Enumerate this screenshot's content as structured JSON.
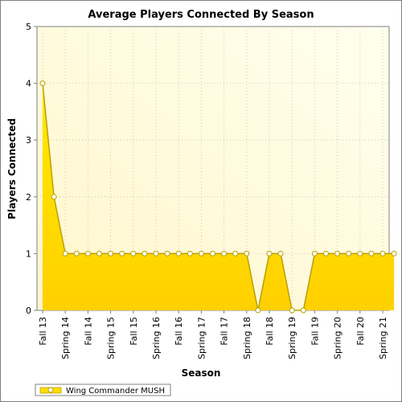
{
  "chart_data": {
    "type": "area",
    "title": "Average Players Connected By Season",
    "xlabel": "Season",
    "ylabel": "Players Connected",
    "ylim": [
      0,
      5
    ],
    "yticks": [
      "0",
      "1",
      "2",
      "3",
      "4",
      "5"
    ],
    "x_tick_labels": [
      "Fall 13",
      "Spring 14",
      "Fall 14",
      "Spring 15",
      "Fall 15",
      "Spring 16",
      "Fall 16",
      "Spring 17",
      "Fall 17",
      "Spring 18",
      "Fall 18",
      "Spring 19",
      "Fall 19",
      "Spring 20",
      "Fall 20",
      "Spring 21"
    ],
    "grid": true,
    "legend_position": "bottom-left",
    "series": [
      {
        "name": "Wing Commander MUSH",
        "color": "#ffdd00",
        "values": [
          4,
          2,
          1,
          1,
          1,
          1,
          1,
          1,
          1,
          1,
          1,
          1,
          1,
          1,
          1,
          1,
          1,
          1,
          1,
          0,
          1,
          1,
          0,
          0,
          1,
          1,
          1,
          1,
          1,
          1,
          1,
          1
        ]
      }
    ]
  }
}
